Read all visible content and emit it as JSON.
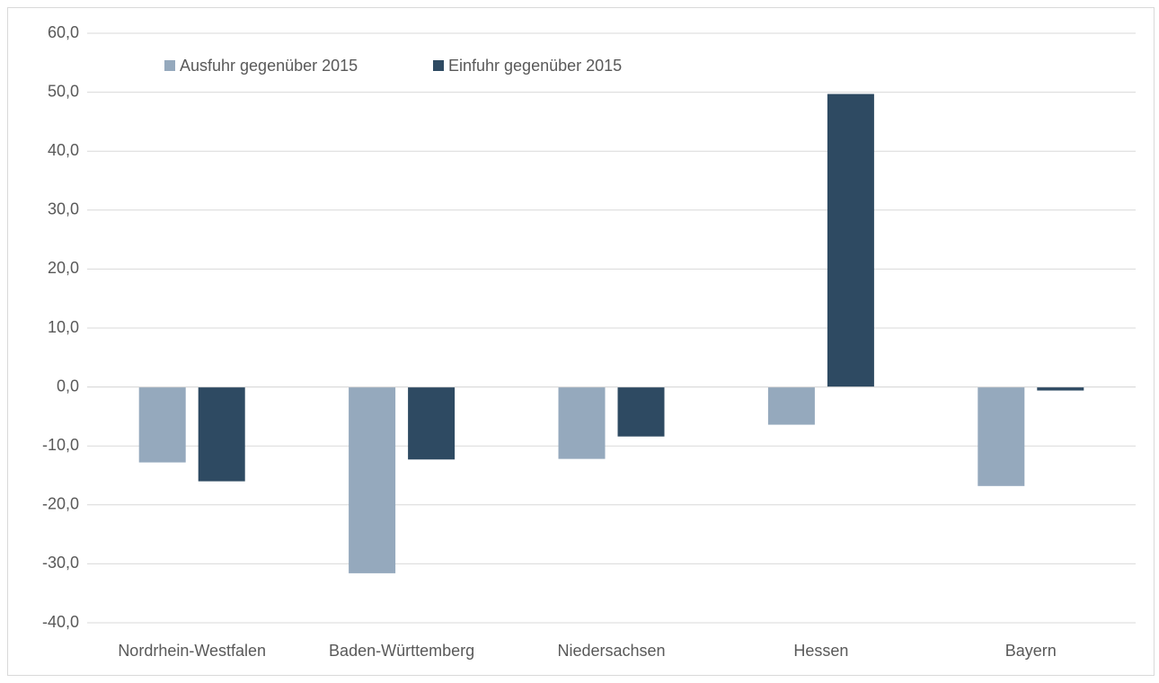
{
  "chart_data": {
    "type": "bar",
    "categories": [
      "Nordrhein-Westfalen",
      "Baden-Württemberg",
      "Niedersachsen",
      "Hessen",
      "Bayern"
    ],
    "series": [
      {
        "name": "Ausfuhr gegenüber 2015",
        "color": "#95a9bd",
        "values": [
          -12.8,
          -31.6,
          -12.2,
          -6.4,
          -16.8
        ]
      },
      {
        "name": "Einfuhr gegenüber 2015",
        "color": "#2e4a62",
        "values": [
          -16.0,
          -12.3,
          -8.4,
          49.7,
          -0.6
        ]
      }
    ],
    "ylim": [
      -40,
      60
    ],
    "yticks": [
      {
        "value": -40,
        "label": "-40,0"
      },
      {
        "value": -30,
        "label": "-30,0"
      },
      {
        "value": -20,
        "label": "-20,0"
      },
      {
        "value": -10,
        "label": "-10,0"
      },
      {
        "value": 0,
        "label": "0,0"
      },
      {
        "value": 10,
        "label": "10,0"
      },
      {
        "value": 20,
        "label": "20,0"
      },
      {
        "value": 30,
        "label": "30,0"
      },
      {
        "value": 40,
        "label": "40,0"
      },
      {
        "value": 50,
        "label": "50,0"
      },
      {
        "value": 60,
        "label": "60,0"
      }
    ],
    "grid": true
  }
}
